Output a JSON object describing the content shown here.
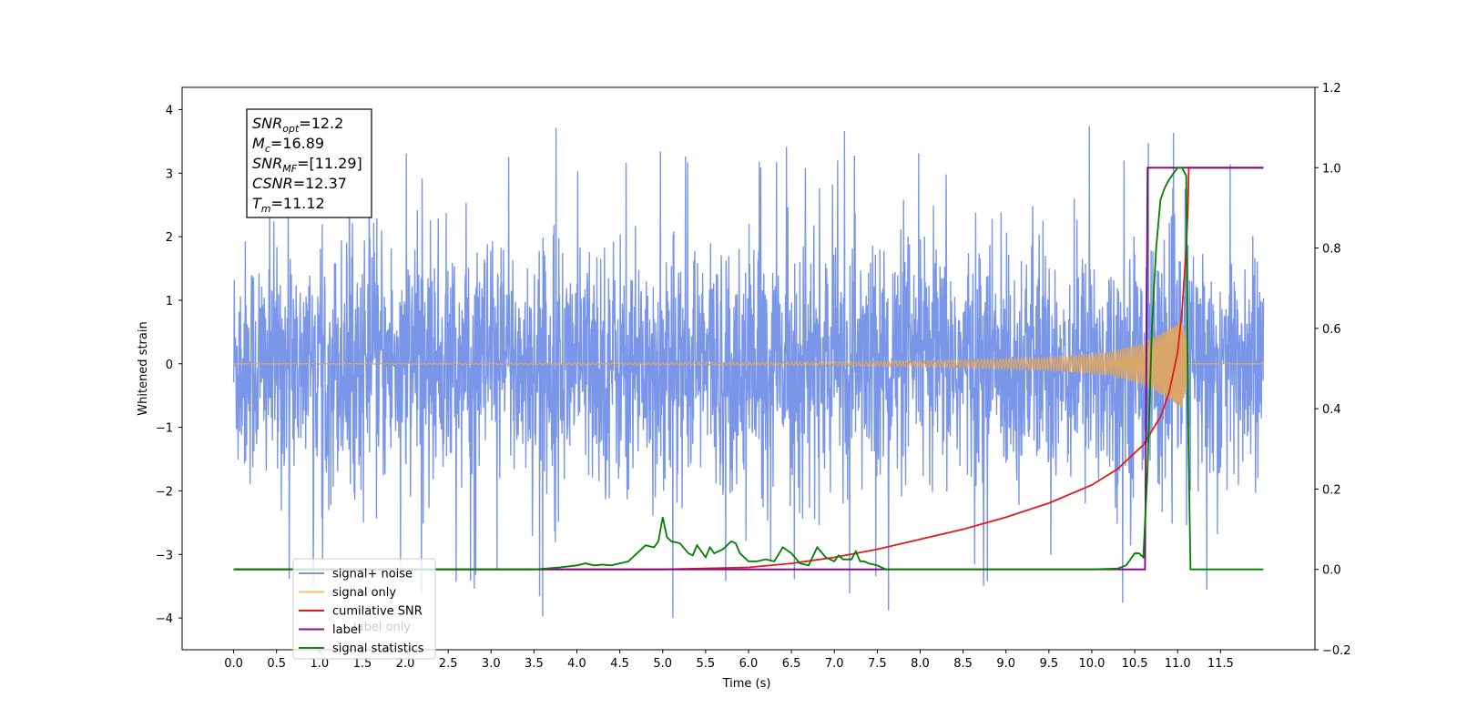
{
  "chart_data": {
    "type": "line",
    "xlabel": "Time (s)",
    "ylabel_left": "Whitened strain",
    "xlim": [
      -0.6,
      12.6
    ],
    "ylim_left": [
      -4.5,
      4.35
    ],
    "ylim_right": [
      -0.2,
      1.2
    ],
    "x_ticks": [
      "0.0",
      "0.5",
      "1.0",
      "1.5",
      "2.0",
      "2.5",
      "3.0",
      "3.5",
      "4.0",
      "4.5",
      "5.0",
      "5.5",
      "6.0",
      "6.5",
      "7.0",
      "7.5",
      "8.0",
      "8.5",
      "9.0",
      "9.5",
      "10.0",
      "10.5",
      "11.0",
      "11.5"
    ],
    "y_ticks_left": [
      "−4",
      "−3",
      "−2",
      "−1",
      "0",
      "1",
      "2",
      "3",
      "4"
    ],
    "y_ticks_right": [
      "−0.2",
      "0.0",
      "0.2",
      "0.4",
      "0.6",
      "0.8",
      "1.0",
      "1.2"
    ],
    "annotation": {
      "lines": [
        {
          "base": "SNR",
          "sub": "opt",
          "rest": "=12.2"
        },
        {
          "base": "M",
          "sub": "c",
          "rest": "=16.89"
        },
        {
          "base": "SNR",
          "sub": "MF",
          "rest": "=[11.29]"
        },
        {
          "base": "CSNR",
          "sub": "",
          "rest": "=12.37"
        },
        {
          "base": "T",
          "sub": "m",
          "rest": "=11.12"
        }
      ]
    },
    "legend": {
      "placement": "lower-left",
      "entries": [
        {
          "label": "signal+ noise",
          "color": "#7a96e8"
        },
        {
          "label": "signal only",
          "color": "#f5c06a"
        },
        {
          "label": "cumilative SNR",
          "color": "#e31a1c"
        },
        {
          "label": "label",
          "color": "#7b1a8a"
        },
        {
          "label": "signal statistics",
          "color": "#1a7f1a"
        }
      ],
      "faded_text_behind": "label only"
    },
    "series": [
      {
        "name": "signal+ noise",
        "axis": "left",
        "color": "#7a96e8",
        "description": "dense noise band",
        "x_range": [
          0.0,
          12.0
        ],
        "band_typical": [
          -2.0,
          2.0
        ],
        "band_peaks": [
          -4.1,
          4.0
        ]
      },
      {
        "name": "signal only",
        "axis": "left",
        "color": "#d9a66a",
        "x_range": [
          0.0,
          12.0
        ],
        "envelope": {
          "x": [
            0.0,
            6.0,
            8.0,
            9.5,
            10.2,
            10.6,
            10.9,
            11.05,
            11.1,
            11.12,
            12.0
          ],
          "amp": [
            0.0,
            0.02,
            0.05,
            0.1,
            0.18,
            0.33,
            0.55,
            0.7,
            0.4,
            0.0,
            0.0
          ]
        }
      },
      {
        "name": "cumilative SNR",
        "axis": "right",
        "color": "#e31a1c",
        "x": [
          0.0,
          3.0,
          5.0,
          6.0,
          6.5,
          7.0,
          7.5,
          8.0,
          8.5,
          9.0,
          9.5,
          10.0,
          10.3,
          10.6,
          10.8,
          10.9,
          11.0,
          11.05,
          11.1,
          11.12,
          11.13,
          12.0
        ],
        "y": [
          0.0,
          0.0,
          0.0,
          0.005,
          0.015,
          0.03,
          0.05,
          0.075,
          0.1,
          0.13,
          0.165,
          0.21,
          0.25,
          0.31,
          0.38,
          0.44,
          0.54,
          0.64,
          0.8,
          0.9,
          1.0,
          1.0
        ]
      },
      {
        "name": "label",
        "axis": "right",
        "color": "#800080",
        "x": [
          0.0,
          10.62,
          10.65,
          11.12,
          11.13,
          12.0
        ],
        "y": [
          0.0,
          0.0,
          1.0,
          1.0,
          1.0,
          1.0
        ],
        "note": "label"
      },
      {
        "name": "signal statistics",
        "axis": "right",
        "color": "#008000",
        "x": [
          0.0,
          3.5,
          3.8,
          4.0,
          4.1,
          4.2,
          4.3,
          4.4,
          4.5,
          4.6,
          4.7,
          4.8,
          4.9,
          4.95,
          5.0,
          5.05,
          5.1,
          5.2,
          5.3,
          5.35,
          5.4,
          5.5,
          5.55,
          5.6,
          5.7,
          5.8,
          5.85,
          5.9,
          6.0,
          6.1,
          6.2,
          6.3,
          6.4,
          6.5,
          6.6,
          6.7,
          6.8,
          6.9,
          7.0,
          7.05,
          7.1,
          7.2,
          7.25,
          7.3,
          7.35,
          7.4,
          7.5,
          7.6,
          7.7,
          8.0,
          9.0,
          10.0,
          10.3,
          10.4,
          10.5,
          10.55,
          10.6,
          10.65,
          10.7,
          10.75,
          10.8,
          10.85,
          10.9,
          11.0,
          11.05,
          11.1,
          11.12,
          11.15,
          12.0
        ],
        "y": [
          0.0,
          0.0,
          0.005,
          0.01,
          0.015,
          0.01,
          0.012,
          0.01,
          0.015,
          0.02,
          0.04,
          0.06,
          0.055,
          0.07,
          0.13,
          0.08,
          0.07,
          0.065,
          0.04,
          0.035,
          0.06,
          0.03,
          0.055,
          0.04,
          0.05,
          0.07,
          0.065,
          0.04,
          0.02,
          0.02,
          0.025,
          0.02,
          0.055,
          0.04,
          0.015,
          0.01,
          0.055,
          0.03,
          0.02,
          0.035,
          0.025,
          0.025,
          0.045,
          0.02,
          0.02,
          0.015,
          0.01,
          0.0,
          0.0,
          0.0,
          0.0,
          0.0,
          0.002,
          0.01,
          0.04,
          0.04,
          0.03,
          0.25,
          0.6,
          0.8,
          0.92,
          0.95,
          0.97,
          1.0,
          1.0,
          0.98,
          0.4,
          0.0,
          0.0
        ]
      }
    ]
  }
}
